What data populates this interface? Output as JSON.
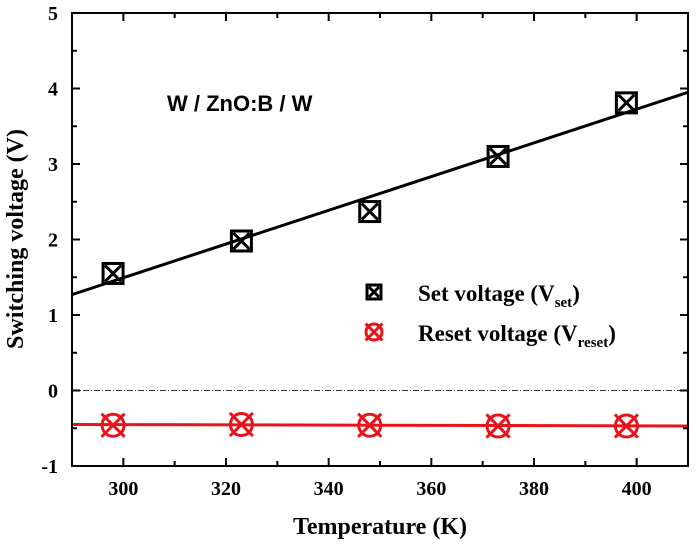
{
  "chart_data": {
    "type": "scatter",
    "title": "",
    "xlabel": "Temperature (K)",
    "ylabel": "Switching voltage (V)",
    "xlim": [
      290,
      410
    ],
    "ylim": [
      -1,
      5
    ],
    "xticks": [
      300,
      320,
      340,
      360,
      380,
      400
    ],
    "yticks": [
      -1,
      0,
      1,
      2,
      3,
      4,
      5
    ],
    "annotation": "W / ZnO:B / W",
    "legend_position": "right",
    "grid": false,
    "reference_line": {
      "y": 0,
      "style": "dash-dot"
    },
    "series": [
      {
        "name": "Set voltage (V",
        "name_sub": "set",
        "name_suffix": ")",
        "marker": "square-x",
        "color": "#000000",
        "x": [
          298,
          323,
          348,
          373,
          398
        ],
        "y": [
          1.55,
          1.98,
          2.37,
          3.1,
          3.81
        ],
        "fit": {
          "x": [
            290,
            410
          ],
          "y": [
            1.27,
            3.95
          ]
        }
      },
      {
        "name": "Reset voltage (V",
        "name_sub": "reset",
        "name_suffix": ")",
        "marker": "circle-x",
        "color": "#e8141c",
        "x": [
          298,
          323,
          348,
          373,
          398
        ],
        "y": [
          -0.46,
          -0.45,
          -0.46,
          -0.47,
          -0.47
        ],
        "fit": {
          "x": [
            290,
            410
          ],
          "y": [
            -0.45,
            -0.47
          ]
        }
      }
    ]
  }
}
